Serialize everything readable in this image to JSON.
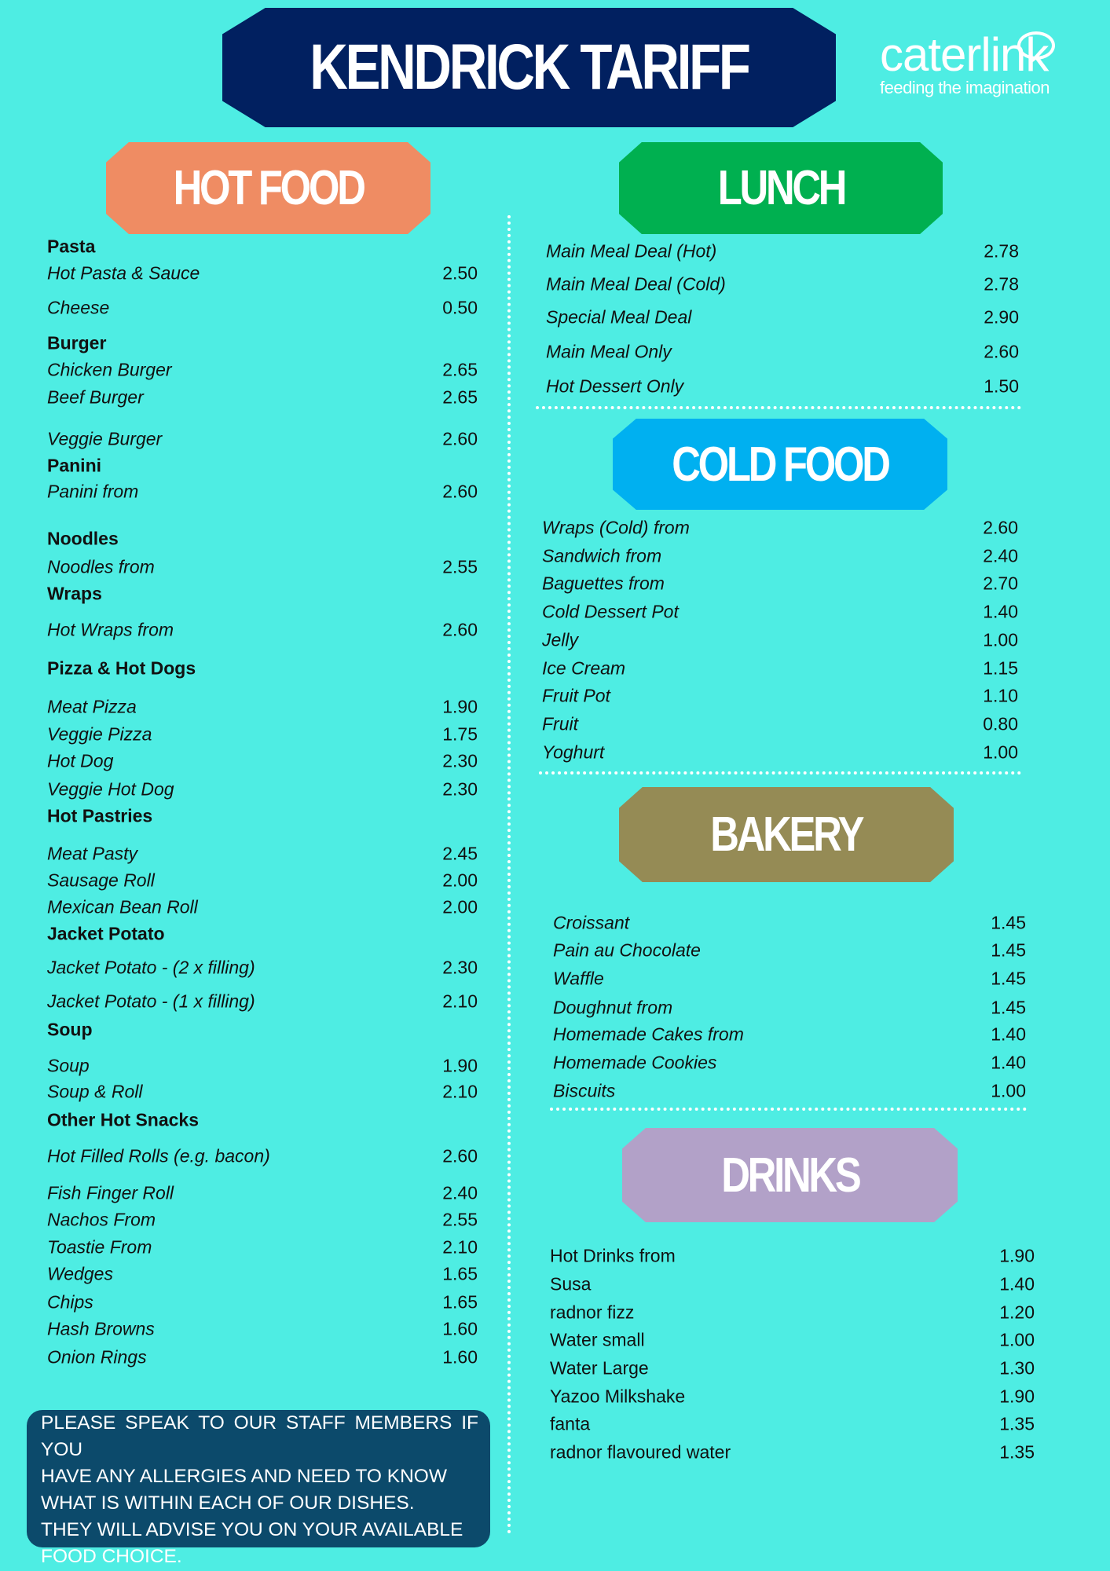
{
  "title": "KENDRICK TARIFF",
  "logo": {
    "name": "caterlink",
    "tagline": "feeding the imagination"
  },
  "colors": {
    "background": "#4eede3",
    "title": "#012060",
    "hot_food": "#ef8c63",
    "lunch": "#00b050",
    "cold_food": "#00b0f0",
    "bakery": "#958b55",
    "drinks": "#b2a1c8",
    "allergy_box": "#0c4a6b"
  },
  "hot_food": {
    "heading": "HOT FOOD",
    "rows": [
      {
        "type": "heading",
        "label": "Pasta"
      },
      {
        "label": "Hot Pasta & Sauce",
        "price": "2.50"
      },
      {
        "label": "Cheese",
        "price": "0.50"
      },
      {
        "type": "heading",
        "label": "Burger"
      },
      {
        "label": "Chicken Burger",
        "price": "2.65"
      },
      {
        "label": "Beef Burger",
        "price": "2.65"
      },
      {
        "label": "Veggie Burger",
        "price": "2.60"
      },
      {
        "type": "heading",
        "label": "Panini"
      },
      {
        "label": "Panini from",
        "price": "2.60"
      },
      {
        "type": "heading",
        "label": "Noodles"
      },
      {
        "label": "Noodles from",
        "price": "2.55"
      },
      {
        "type": "heading",
        "label": "Wraps"
      },
      {
        "label": "Hot Wraps from",
        "price": "2.60"
      },
      {
        "type": "heading",
        "label": "Pizza & Hot Dogs"
      },
      {
        "label": "Meat Pizza",
        "price": "1.90"
      },
      {
        "label": "Veggie Pizza",
        "price": "1.75"
      },
      {
        "label": "Hot Dog",
        "price": "2.30"
      },
      {
        "label": "Veggie Hot Dog",
        "price": "2.30"
      },
      {
        "type": "heading",
        "label": "Hot Pastries"
      },
      {
        "label": "Meat Pasty",
        "price": "2.45"
      },
      {
        "label": "Sausage Roll",
        "price": "2.00"
      },
      {
        "label": "Mexican Bean Roll",
        "price": "2.00"
      },
      {
        "type": "heading",
        "label": "Jacket Potato"
      },
      {
        "label": "Jacket Potato - (2 x filling)",
        "price": "2.30"
      },
      {
        "label": "Jacket Potato - (1 x filling)",
        "price": "2.10"
      },
      {
        "type": "heading",
        "label": "Soup"
      },
      {
        "label": "Soup",
        "price": "1.90"
      },
      {
        "label": "Soup & Roll",
        "price": "2.10"
      },
      {
        "type": "heading",
        "label": "Other Hot Snacks"
      },
      {
        "label": "Hot Filled Rolls (e.g. bacon)",
        "price": "2.60"
      },
      {
        "label": "Fish Finger Roll",
        "price": "2.40"
      },
      {
        "label": "Nachos From",
        "price": "2.55"
      },
      {
        "label": "Toastie From",
        "price": "2.10"
      },
      {
        "label": "Wedges",
        "price": "1.65"
      },
      {
        "label": "Chips",
        "price": "1.65"
      },
      {
        "label": "Hash Browns",
        "price": "1.60"
      },
      {
        "label": "Onion Rings",
        "price": "1.60"
      }
    ]
  },
  "lunch": {
    "heading": "LUNCH",
    "rows": [
      {
        "label": "Main Meal Deal (Hot)",
        "price": "2.78"
      },
      {
        "label": "Main Meal Deal (Cold)",
        "price": "2.78"
      },
      {
        "label": "Special Meal Deal",
        "price": "2.90"
      },
      {
        "label": "Main Meal Only",
        "price": "2.60"
      },
      {
        "label": "Hot Dessert Only",
        "price": "1.50"
      }
    ]
  },
  "cold_food": {
    "heading": "COLD FOOD",
    "rows": [
      {
        "label": "Wraps (Cold) from",
        "price": "2.60"
      },
      {
        "label": "Sandwich from",
        "price": "2.40"
      },
      {
        "label": "Baguettes from",
        "price": "2.70"
      },
      {
        "label": "Cold Dessert Pot",
        "price": "1.40"
      },
      {
        "label": "Jelly",
        "price": "1.00"
      },
      {
        "label": "Ice Cream",
        "price": "1.15"
      },
      {
        "label": "Fruit Pot",
        "price": "1.10"
      },
      {
        "label": "Fruit",
        "price": "0.80"
      },
      {
        "label": "Yoghurt",
        "price": "1.00"
      }
    ]
  },
  "bakery": {
    "heading": "BAKERY",
    "rows": [
      {
        "label": "Croissant",
        "price": "1.45"
      },
      {
        "label": "Pain au Chocolate",
        "price": "1.45"
      },
      {
        "label": "Waffle",
        "price": "1.45"
      },
      {
        "label": "Doughnut from",
        "price": "1.45"
      },
      {
        "label": "Homemade Cakes from",
        "price": "1.40"
      },
      {
        "label": "Homemade Cookies",
        "price": "1.40"
      },
      {
        "label": "Biscuits",
        "price": "1.00"
      }
    ]
  },
  "drinks": {
    "heading": "DRINKS",
    "rows": [
      {
        "label": "Hot Drinks from",
        "price": "1.90"
      },
      {
        "label": "Susa",
        "price": "1.40"
      },
      {
        "label": "radnor fizz",
        "price": "1.20"
      },
      {
        "label": "Water small",
        "price": "1.00"
      },
      {
        "label": "Water Large",
        "price": "1.30"
      },
      {
        "label": "Yazoo Milkshake",
        "price": "1.90"
      },
      {
        "label": "fanta",
        "price": "1.35"
      },
      {
        "label": "radnor flavoured water",
        "price": "1.35"
      }
    ]
  },
  "allergy_notice": [
    "PLEASE SPEAK TO OUR STAFF  MEMBERS IF YOU",
    "HAVE ANY  ALLERGIES AND NEED TO KNOW",
    "WHAT IS WITHIN EACH OF OUR  DISHES.",
    "THEY WILL ADVISE YOU ON  YOUR AVAILABLE",
    "FOOD CHOICE."
  ]
}
